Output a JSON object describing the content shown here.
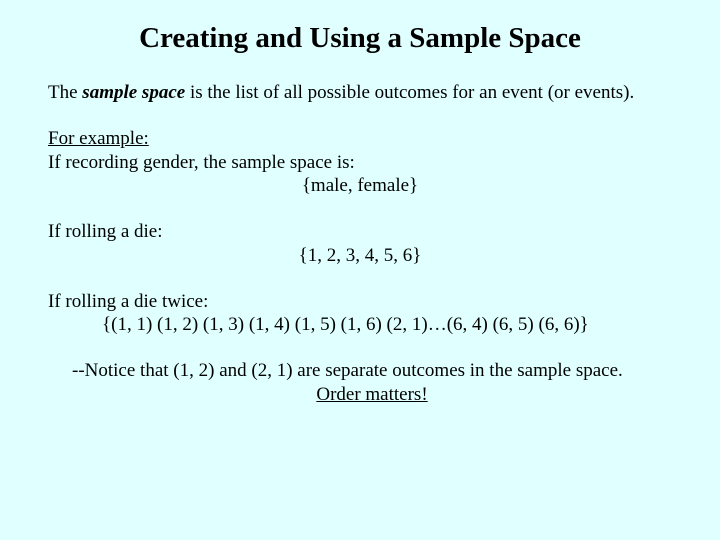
{
  "background_color": "#e0ffff",
  "text_color": "#000000",
  "title": "Creating and Using a Sample Space",
  "intro": {
    "prefix": "The ",
    "term": "sample space",
    "rest": " is the list of all possible outcomes for an event (or events)."
  },
  "example_label": "For example:",
  "gender": {
    "line": "If recording gender, the sample space is:",
    "set": "{male, female}"
  },
  "die": {
    "line": "If rolling a die:",
    "set": "{1, 2, 3, 4, 5, 6}"
  },
  "die_twice": {
    "line": "If rolling a die twice:",
    "set": "{(1, 1) (1, 2) (1, 3) (1, 4) (1, 5) (1, 6) (2, 1)…(6, 4) (6, 5) (6, 6)}"
  },
  "notice": {
    "text": "--Notice that (1, 2) and (2, 1) are separate outcomes in the sample space.",
    "order": "Order matters!"
  }
}
